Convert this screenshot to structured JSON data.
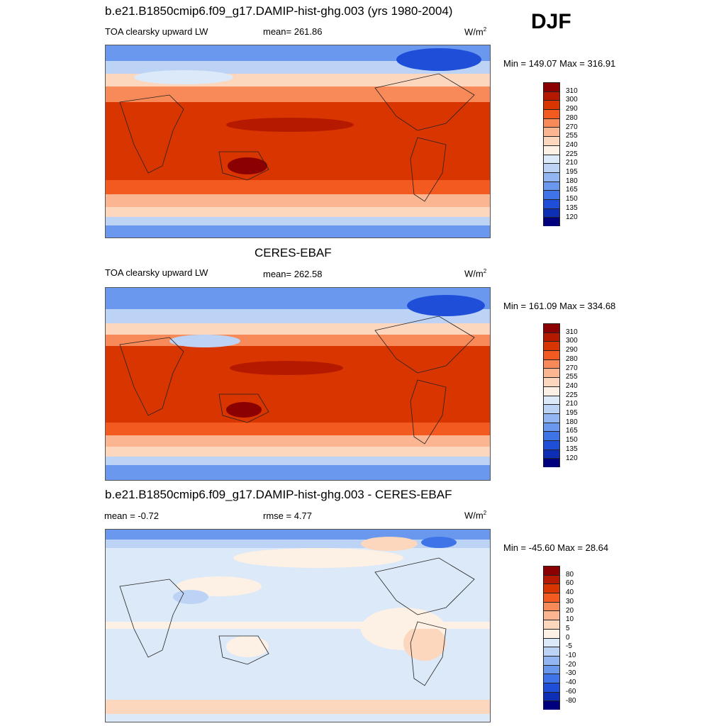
{
  "season": "DJF",
  "panel1": {
    "title": "b.e21.B1850cmip6.f09_g17.DAMIP-hist-ghg.003 (yrs 1980-2004)",
    "left": "TOA clearsky upward LW",
    "center": "mean= 261.86",
    "unit": "W/m",
    "unit_sup": "2",
    "minmax": "Min = 149.07 Max = 316.91"
  },
  "panel2": {
    "title": "CERES-EBAF",
    "left": "TOA clearsky upward LW",
    "center": "mean= 262.58",
    "unit": "W/m",
    "unit_sup": "2",
    "minmax": "Min = 161.09 Max = 334.68"
  },
  "panel3": {
    "title": "b.e21.B1850cmip6.f09_g17.DAMIP-hist-ghg.003 - CERES-EBAF",
    "left": "mean =  -0.72",
    "center": "rmse =   4.77",
    "unit": "W/m",
    "unit_sup": "2",
    "minmax": "Min = -45.60 Max =  28.64"
  },
  "colorbar_abs": {
    "labels": [
      "310",
      "300",
      "290",
      "280",
      "270",
      "255",
      "240",
      "225",
      "210",
      "195",
      "180",
      "165",
      "150",
      "135",
      "120"
    ],
    "colors": [
      "#8b0000",
      "#b51a00",
      "#d93500",
      "#f25a20",
      "#f88a5a",
      "#fbb590",
      "#fcd7bd",
      "#fdf0e4",
      "#dce9f8",
      "#bcd3f5",
      "#92b6f2",
      "#6a98ee",
      "#3f74e8",
      "#1f4fd9",
      "#0c2fb5",
      "#00007f"
    ]
  },
  "colorbar_diff": {
    "labels": [
      "80",
      "60",
      "40",
      "30",
      "20",
      "10",
      "5",
      "0",
      "-5",
      "-10",
      "-20",
      "-30",
      "-40",
      "-60",
      "-80"
    ],
    "colors": [
      "#8b0000",
      "#b51a00",
      "#d93500",
      "#f25a20",
      "#f88a5a",
      "#fbb590",
      "#fcd7bd",
      "#fdf0e4",
      "#dce9f8",
      "#bcd3f5",
      "#92b6f2",
      "#6a98ee",
      "#3f74e8",
      "#1f4fd9",
      "#0c2fb5",
      "#00007f"
    ]
  }
}
